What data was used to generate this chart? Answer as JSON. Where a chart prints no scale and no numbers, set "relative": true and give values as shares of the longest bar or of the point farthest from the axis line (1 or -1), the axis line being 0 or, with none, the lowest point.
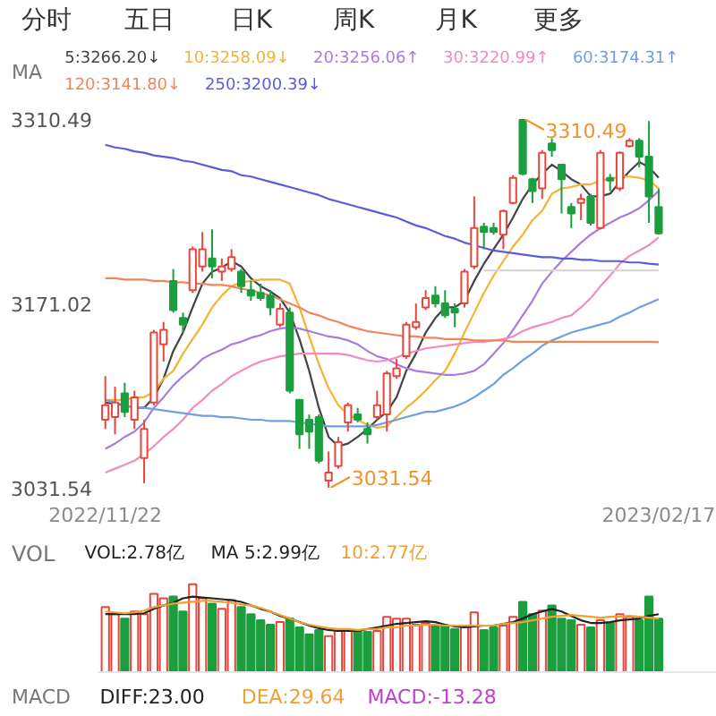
{
  "chart_data": [
    {
      "type": "other",
      "annotations": [
        "分时",
        "五日",
        "日K",
        "周K",
        "月K",
        "更多"
      ]
    },
    {
      "type": "candlestick",
      "legend": "top",
      "annotations": [
        "MA",
        "3310.49",
        "3031.54"
      ],
      "categories": [
        "2022/11/22",
        null,
        null,
        null,
        null,
        null,
        null,
        null,
        null,
        null,
        null,
        null,
        null,
        null,
        null,
        null,
        null,
        null,
        null,
        null,
        null,
        null,
        null,
        null,
        null,
        null,
        null,
        null,
        null,
        null,
        null,
        null,
        null,
        null,
        null,
        null,
        null,
        null,
        null,
        null,
        null,
        null,
        null,
        null,
        null,
        null,
        null,
        null,
        null,
        null,
        null,
        null,
        null,
        null,
        null,
        null,
        null,
        "2023/02/17"
      ],
      "ylim": [
        3031.54,
        3310.49
      ],
      "yticks": [
        3310.49,
        3171.02,
        3031.54
      ],
      "ohlc": [
        [
          3083,
          3116,
          3076,
          3094
        ],
        [
          3085,
          3108,
          3072,
          3096
        ],
        [
          3103,
          3111,
          3085,
          3089
        ],
        [
          3083,
          3105,
          3076,
          3100
        ],
        [
          3054,
          3083,
          3035,
          3076
        ],
        [
          3096,
          3151,
          3094,
          3149
        ],
        [
          3140,
          3157,
          3127,
          3151
        ],
        [
          3188,
          3197,
          3164,
          3166
        ],
        [
          3160,
          3164,
          3149,
          3155
        ],
        [
          3181,
          3214,
          3179,
          3212
        ],
        [
          3199,
          3225,
          3195,
          3212
        ],
        [
          3205,
          3227,
          3190,
          3199
        ],
        [
          3195,
          3205,
          3188,
          3199
        ],
        [
          3197,
          3212,
          3195,
          3206
        ],
        [
          3195,
          3197,
          3179,
          3184
        ],
        [
          3181,
          3188,
          3173,
          3177
        ],
        [
          3179,
          3186,
          3173,
          3175
        ],
        [
          3177,
          3181,
          3162,
          3168
        ],
        [
          3155,
          3171,
          3153,
          3167
        ],
        [
          3164,
          3168,
          3103,
          3105
        ],
        [
          3098,
          3098,
          3061,
          3072
        ],
        [
          3083,
          3087,
          3061,
          3074
        ],
        [
          3085,
          3087,
          3050,
          3052
        ],
        [
          3037,
          3059,
          3031.54,
          3043
        ],
        [
          3048,
          3070,
          3046,
          3066
        ],
        [
          3081,
          3096,
          3074,
          3094
        ],
        [
          3087,
          3092,
          3081,
          3083
        ],
        [
          3076,
          3081,
          3065,
          3072
        ],
        [
          3085,
          3105,
          3083,
          3094
        ],
        [
          3087,
          3120,
          3074,
          3118
        ],
        [
          3116,
          3129,
          3114,
          3122
        ],
        [
          3131,
          3157,
          3129,
          3155
        ],
        [
          3153,
          3171,
          3151,
          3157
        ],
        [
          3168,
          3181,
          3166,
          3175
        ],
        [
          3177,
          3184,
          3168,
          3171
        ],
        [
          3171,
          3181,
          3160,
          3162
        ],
        [
          3167,
          3171,
          3153,
          3164
        ],
        [
          3171,
          3197,
          3168,
          3195
        ],
        [
          3199,
          3252,
          3197,
          3228
        ],
        [
          3229,
          3232,
          3212,
          3225
        ],
        [
          3228,
          3232,
          3223,
          3225
        ],
        [
          3223,
          3242,
          3212,
          3241
        ],
        [
          3247,
          3268,
          3246,
          3266
        ],
        [
          3310,
          3310.49,
          3268,
          3269
        ],
        [
          3265,
          3266,
          3247,
          3256
        ],
        [
          3258,
          3287,
          3250,
          3285
        ],
        [
          3292,
          3296,
          3282,
          3287
        ],
        [
          3276,
          3276,
          3239,
          3265
        ],
        [
          3244,
          3247,
          3228,
          3239
        ],
        [
          3247,
          3254,
          3234,
          3250
        ],
        [
          3252,
          3254,
          3230,
          3232
        ],
        [
          3228,
          3287,
          3227,
          3285
        ],
        [
          3266,
          3269,
          3256,
          3264
        ],
        [
          3258,
          3286,
          3256,
          3285
        ],
        [
          3290,
          3296,
          3289,
          3294
        ],
        [
          3294,
          3296,
          3274,
          3282
        ],
        [
          3282,
          3309,
          3232,
          3252
        ],
        [
          3244,
          3258,
          3223,
          3224
        ]
      ],
      "colors": [
        "#e8453c",
        "#e8453c",
        "#1b9e3e",
        "#e8453c",
        "#e8453c",
        "#e8453c",
        "#e8453c",
        "#1b9e3e",
        "#1b9e3e",
        "#e8453c",
        "#e8453c",
        "#1b9e3e",
        "#e8453c",
        "#e8453c",
        "#1b9e3e",
        "#1b9e3e",
        "#1b9e3e",
        "#1b9e3e",
        "#e8453c",
        "#1b9e3e",
        "#1b9e3e",
        "#1b9e3e",
        "#1b9e3e",
        "#e8453c",
        "#e8453c",
        "#e8453c",
        "#1b9e3e",
        "#1b9e3e",
        "#e8453c",
        "#e8453c",
        "#e8453c",
        "#e8453c",
        "#e8453c",
        "#e8453c",
        "#1b9e3e",
        "#1b9e3e",
        "#1b9e3e",
        "#e8453c",
        "#e8453c",
        "#1b9e3e",
        "#1b9e3e",
        "#e8453c",
        "#e8453c",
        "#1b9e3e",
        "#1b9e3e",
        "#e8453c",
        "#1b9e3e",
        "#1b9e3e",
        "#1b9e3e",
        "#e8453c",
        "#1b9e3e",
        "#e8453c",
        "#1b9e3e",
        "#e8453c",
        "#e8453c",
        "#1b9e3e",
        "#1b9e3e",
        "#1b9e3e"
      ],
      "series": [
        {
          "type": "line",
          "name": "5:3266.20↓",
          "color": "#444444",
          "values": [
            3096,
            3095,
            3094,
            3092,
            3092,
            3100,
            3114,
            3135,
            3149,
            3168,
            3186,
            3195,
            3198,
            3203,
            3199,
            3190,
            3184,
            3180,
            3175,
            3164,
            3144,
            3120,
            3092,
            3070,
            3063,
            3065,
            3070,
            3076,
            3083,
            3089,
            3100,
            3120,
            3133,
            3149,
            3160,
            3168,
            3168,
            3173,
            3188,
            3201,
            3212,
            3223,
            3236,
            3250,
            3261,
            3269,
            3276,
            3271,
            3265,
            3261,
            3252,
            3252,
            3254,
            3263,
            3271,
            3278,
            3274,
            3266.2
          ]
        },
        {
          "type": "line",
          "name": "10:3258.09↓",
          "color": "#f5b335",
          "values": [
            3098,
            3098,
            3098,
            3100,
            3100,
            3104,
            3114,
            3120,
            3133,
            3144,
            3155,
            3168,
            3177,
            3184,
            3187,
            3188,
            3189,
            3189,
            3189,
            3186,
            3168,
            3146,
            3125,
            3107,
            3094,
            3087,
            3083,
            3079,
            3077,
            3078,
            3085,
            3092,
            3098,
            3105,
            3113,
            3120,
            3133,
            3149,
            3164,
            3179,
            3192,
            3203,
            3214,
            3223,
            3234,
            3241,
            3254,
            3258,
            3259,
            3261,
            3261,
            3264,
            3265,
            3267,
            3267,
            3266,
            3264,
            3258.09
          ]
        },
        {
          "type": "line",
          "name": "20:3256.06↑",
          "color": "#a97de0",
          "values": [
            3061,
            3065,
            3070,
            3074,
            3081,
            3092,
            3100,
            3109,
            3116,
            3122,
            3129,
            3133,
            3136,
            3140,
            3142,
            3145,
            3147,
            3150,
            3152,
            3153,
            3152,
            3150,
            3148,
            3146,
            3145,
            3143,
            3140,
            3135,
            3131,
            3129,
            3125,
            3122,
            3120,
            3119,
            3118,
            3117,
            3117,
            3118,
            3120,
            3125,
            3133,
            3141,
            3151,
            3162,
            3173,
            3186,
            3195,
            3203,
            3210,
            3217,
            3223,
            3228,
            3232,
            3236,
            3239,
            3243,
            3249,
            3256.06
          ]
        },
        {
          "type": "line",
          "name": "30:3220.99↑",
          "color": "#f08cc0",
          "values": [
            3043,
            3046,
            3049,
            3052,
            3057,
            3063,
            3070,
            3076,
            3083,
            3092,
            3098,
            3105,
            3110,
            3116,
            3120,
            3124,
            3127,
            3129,
            3131,
            3132,
            3133,
            3133,
            3133,
            3133,
            3133,
            3132,
            3130,
            3128,
            3127,
            3128,
            3130,
            3133,
            3135,
            3137,
            3138,
            3139,
            3140,
            3141,
            3142,
            3142,
            3143,
            3144,
            3146,
            3150,
            3153,
            3155,
            3157,
            3160,
            3162,
            3168,
            3175,
            3184,
            3192,
            3201,
            3207,
            3211,
            3215,
            3220.99
          ]
        },
        {
          "type": "line",
          "name": "60:3174.31↑",
          "color": "#6f9fe0",
          "values": [
            3098,
            3096,
            3094,
            3092,
            3092,
            3091,
            3090,
            3089,
            3088,
            3087,
            3086,
            3086,
            3085,
            3085,
            3084,
            3083,
            3083,
            3082,
            3082,
            3082,
            3081,
            3080,
            3079,
            3078,
            3078,
            3078,
            3078,
            3078,
            3079,
            3081,
            3083,
            3085,
            3087,
            3089,
            3089,
            3091,
            3093,
            3096,
            3100,
            3105,
            3110,
            3117,
            3122,
            3128,
            3133,
            3139,
            3143,
            3146,
            3149,
            3151,
            3153,
            3155,
            3157,
            3161,
            3164,
            3168,
            3171,
            3174.31
          ]
        },
        {
          "type": "line",
          "name": "120:3141.80↓",
          "color": "#f0865a",
          "values": [
            3190,
            3190,
            3189,
            3189,
            3189,
            3188,
            3188,
            3187,
            3187,
            3186,
            3186,
            3185,
            3185,
            3184,
            3182,
            3181,
            3179,
            3177,
            3174,
            3171,
            3168,
            3164,
            3162,
            3159,
            3157,
            3154,
            3152,
            3150,
            3149,
            3148,
            3147,
            3146,
            3146,
            3145,
            3145,
            3144,
            3144,
            3144,
            3143,
            3143,
            3143,
            3143,
            3142,
            3142,
            3142,
            3142,
            3142,
            3142,
            3142,
            3142,
            3142,
            3142,
            3142,
            3142,
            3142,
            3142,
            3142,
            3141.8
          ]
        },
        {
          "type": "line",
          "name": "250:3200.39↓",
          "color": "#5b5bdc",
          "values": [
            3291,
            3289,
            3288,
            3286,
            3285,
            3283,
            3282,
            3281,
            3279,
            3278,
            3276,
            3274,
            3272,
            3271,
            3268,
            3267,
            3265,
            3263,
            3261,
            3259,
            3257,
            3255,
            3253,
            3250,
            3248,
            3246,
            3244,
            3242,
            3240,
            3238,
            3236,
            3233,
            3230,
            3228,
            3225,
            3222,
            3220,
            3217,
            3215,
            3213,
            3211,
            3210,
            3209,
            3208,
            3207,
            3206,
            3206,
            3205,
            3205,
            3204,
            3204,
            3203,
            3203,
            3203,
            3202,
            3202,
            3201,
            3200.39
          ]
        },
        {
          "type": "line",
          "color": "#d6d6d6",
          "values": [
            null,
            null,
            null,
            null,
            null,
            null,
            null,
            null,
            null,
            null,
            null,
            null,
            null,
            null,
            null,
            null,
            null,
            null,
            null,
            null,
            null,
            null,
            null,
            null,
            null,
            null,
            null,
            null,
            null,
            null,
            null,
            null,
            null,
            null,
            null,
            null,
            null,
            null,
            null,
            3196,
            3196,
            3196,
            3196,
            3196,
            3196,
            3196,
            3196,
            3196,
            3196,
            3196,
            3196,
            3196,
            3196,
            3196,
            3196,
            3196,
            3196,
            3196
          ]
        }
      ]
    },
    {
      "type": "bar",
      "relative": true,
      "legend": "top left",
      "tick_labels": false,
      "annotations": [
        "VOL",
        "VOL:2.78亿"
      ],
      "categories": [
        "2022/11/22",
        null,
        null,
        null,
        null,
        null,
        null,
        null,
        null,
        null,
        null,
        null,
        null,
        null,
        null,
        null,
        null,
        null,
        null,
        null,
        null,
        null,
        null,
        null,
        null,
        null,
        null,
        null,
        null,
        null,
        null,
        null,
        null,
        null,
        null,
        null,
        null,
        null,
        null,
        null,
        null,
        null,
        null,
        null,
        null,
        null,
        null,
        null,
        null,
        null,
        null,
        null,
        null,
        null,
        null,
        null,
        null,
        "2023/02/17"
      ],
      "series": [
        {
          "type": "bar",
          "colors": [
            "#e8453c",
            "#e8453c",
            "#1b9e3e",
            "#e8453c",
            "#e8453c",
            "#e8453c",
            "#e8453c",
            "#1b9e3e",
            "#1b9e3e",
            "#e8453c",
            "#e8453c",
            "#1b9e3e",
            "#e8453c",
            "#e8453c",
            "#1b9e3e",
            "#1b9e3e",
            "#1b9e3e",
            "#1b9e3e",
            "#e8453c",
            "#1b9e3e",
            "#1b9e3e",
            "#1b9e3e",
            "#1b9e3e",
            "#e8453c",
            "#e8453c",
            "#e8453c",
            "#1b9e3e",
            "#1b9e3e",
            "#e8453c",
            "#e8453c",
            "#e8453c",
            "#e8453c",
            "#e8453c",
            "#e8453c",
            "#1b9e3e",
            "#1b9e3e",
            "#1b9e3e",
            "#e8453c",
            "#e8453c",
            "#1b9e3e",
            "#1b9e3e",
            "#e8453c",
            "#e8453c",
            "#1b9e3e",
            "#1b9e3e",
            "#e8453c",
            "#1b9e3e",
            "#1b9e3e",
            "#1b9e3e",
            "#e8453c",
            "#1b9e3e",
            "#e8453c",
            "#1b9e3e",
            "#e8453c",
            "#e8453c",
            "#1b9e3e",
            "#1b9e3e",
            "#1b9e3e"
          ],
          "values": [
            0.74,
            0.66,
            0.61,
            0.69,
            0.66,
            0.89,
            0.84,
            0.86,
            0.69,
            1,
            0.84,
            0.78,
            0.72,
            0.82,
            0.74,
            0.66,
            0.59,
            0.54,
            0.57,
            0.61,
            0.51,
            0.43,
            0.48,
            0.41,
            0.47,
            0.48,
            0.47,
            0.46,
            0.47,
            0.63,
            0.61,
            0.61,
            0.54,
            0.56,
            0.53,
            0.53,
            0.49,
            0.53,
            0.68,
            0.48,
            0.51,
            0.53,
            0.63,
            0.8,
            0.66,
            0.7,
            0.76,
            0.61,
            0.59,
            0.54,
            0.51,
            0.59,
            0.56,
            0.66,
            0.63,
            0.59,
            0.86,
            0.61
          ]
        },
        {
          "type": "line",
          "name": "MA 5:2.99亿",
          "color": "#222222",
          "values": [
            0.66,
            0.66,
            0.66,
            0.66,
            0.67,
            0.72,
            0.76,
            0.79,
            0.84,
            0.86,
            0.85,
            0.84,
            0.83,
            0.82,
            0.8,
            0.76,
            0.72,
            0.69,
            0.64,
            0.61,
            0.57,
            0.53,
            0.5,
            0.48,
            0.47,
            0.47,
            0.47,
            0.49,
            0.51,
            0.53,
            0.55,
            0.56,
            0.57,
            0.58,
            0.57,
            0.54,
            0.52,
            0.51,
            0.52,
            0.53,
            0.53,
            0.55,
            0.57,
            0.61,
            0.66,
            0.69,
            0.72,
            0.69,
            0.64,
            0.59,
            0.56,
            0.56,
            0.57,
            0.59,
            0.6,
            0.61,
            0.64,
            0.66
          ]
        },
        {
          "type": "line",
          "name": "10:2.77亿",
          "color": "#f0a030",
          "values": [
            0.69,
            0.68,
            0.67,
            0.68,
            0.7,
            0.74,
            0.76,
            0.78,
            0.79,
            0.8,
            0.81,
            0.81,
            0.8,
            0.79,
            0.77,
            0.76,
            0.73,
            0.69,
            0.65,
            0.61,
            0.57,
            0.54,
            0.52,
            0.5,
            0.49,
            0.49,
            0.48,
            0.49,
            0.49,
            0.51,
            0.51,
            0.53,
            0.53,
            0.54,
            0.54,
            0.53,
            0.53,
            0.53,
            0.53,
            0.53,
            0.53,
            0.55,
            0.56,
            0.57,
            0.59,
            0.61,
            0.63,
            0.64,
            0.65,
            0.64,
            0.63,
            0.62,
            0.63,
            0.63,
            0.64,
            0.63,
            0.62,
            0.61
          ]
        }
      ]
    },
    {
      "type": "other",
      "annotations": [
        "MACD",
        "DIFF:23.00",
        "DEA:29.64",
        "MACD:-13.28"
      ],
      "colors": [
        "#777777",
        "#222222",
        "#f0a030",
        "#c040d0"
      ]
    }
  ]
}
